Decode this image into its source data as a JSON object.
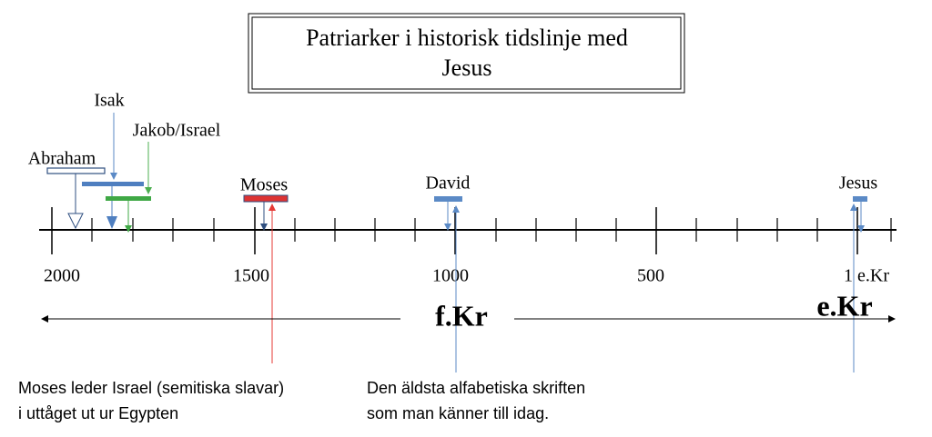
{
  "title": {
    "lines": [
      "Patriarker i historisk tidslinje med",
      "Jesus"
    ]
  },
  "axis_labels": [
    "2000",
    "1500",
    "1000",
    "500",
    "1 e.Kr"
  ],
  "persons": [
    "Abraham",
    "Isak",
    "Jakob/Israel",
    "Moses",
    "David",
    "Jesus"
  ],
  "eras": {
    "before": "f.Kr",
    "after": "e.Kr"
  },
  "notes": [
    {
      "lines": [
        "Moses leder Israel (semitiska slavar)",
        "i uttåget ut ur Egypten"
      ]
    },
    {
      "lines": [
        "Den äldsta alfabetiska skriften",
        "som man känner till idag."
      ]
    }
  ]
}
